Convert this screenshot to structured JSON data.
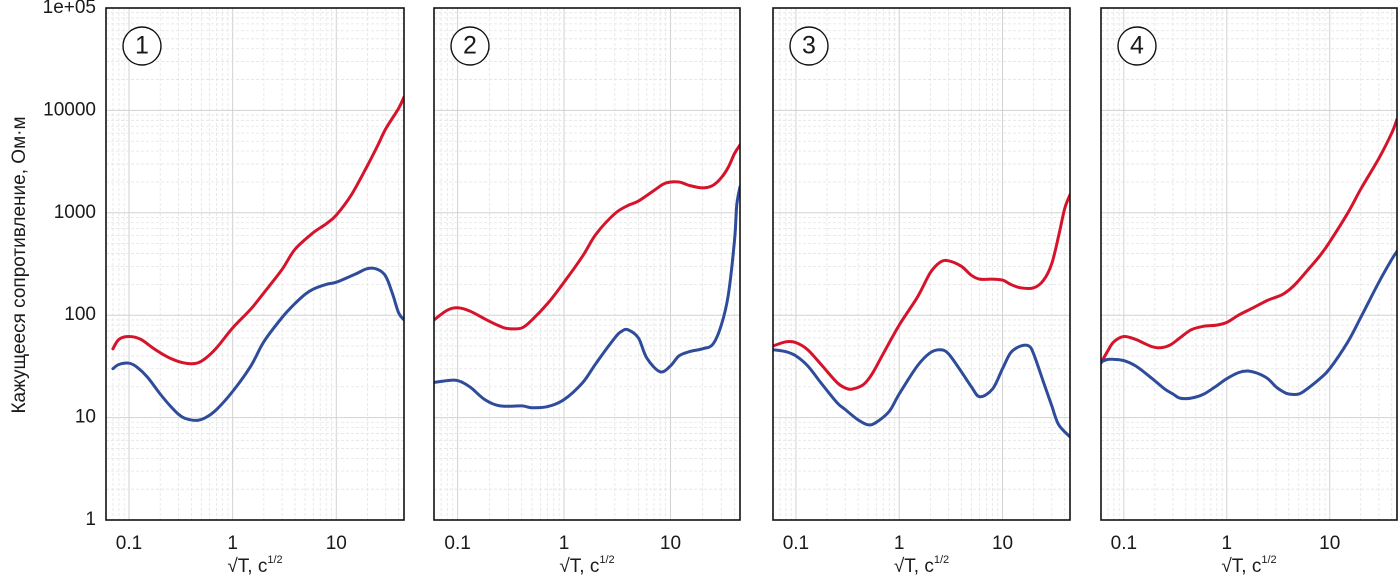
{
  "chart_data": {
    "type": "line",
    "ylabel": "Кажущееся сопротивление, Ом·м",
    "y_scale": "log",
    "x_scale": "log",
    "ylim": [
      1,
      100000
    ],
    "xlim": [
      0.06,
      45
    ],
    "y_ticks": [
      "1",
      "10",
      "100",
      "1000",
      "10000",
      "1e+05"
    ],
    "x_ticks": [
      "0.1",
      "1",
      "10"
    ],
    "x_label_main": "√T, с",
    "x_label_sup": "1/2",
    "grid": true,
    "colors": {
      "red_series": "#d5142b",
      "blue_series": "#2f4c9a"
    },
    "panels": [
      {
        "label": "1",
        "series": [
          {
            "color": "red",
            "points": [
              [
                0.07,
                47
              ],
              [
                0.08,
                58
              ],
              [
                0.1,
                62
              ],
              [
                0.13,
                58
              ],
              [
                0.18,
                46
              ],
              [
                0.25,
                38
              ],
              [
                0.35,
                34
              ],
              [
                0.45,
                34
              ],
              [
                0.55,
                38
              ],
              [
                0.7,
                48
              ],
              [
                1,
                75
              ],
              [
                1.5,
                115
              ],
              [
                2,
                165
              ],
              [
                3,
                280
              ],
              [
                4,
                440
              ],
              [
                6,
                640
              ],
              [
                8,
                780
              ],
              [
                10,
                950
              ],
              [
                14,
                1500
              ],
              [
                20,
                2900
              ],
              [
                25,
                4500
              ],
              [
                30,
                6600
              ],
              [
                40,
                10500
              ],
              [
                45,
                13500
              ]
            ]
          },
          {
            "color": "blue",
            "points": [
              [
                0.07,
                30
              ],
              [
                0.08,
                33
              ],
              [
                0.1,
                34
              ],
              [
                0.12,
                31
              ],
              [
                0.15,
                25
              ],
              [
                0.2,
                17
              ],
              [
                0.25,
                13
              ],
              [
                0.3,
                10.8
              ],
              [
                0.35,
                9.8
              ],
              [
                0.45,
                9.4
              ],
              [
                0.55,
                10
              ],
              [
                0.7,
                12
              ],
              [
                1,
                18
              ],
              [
                1.5,
                32
              ],
              [
                2,
                55
              ],
              [
                3,
                95
              ],
              [
                4,
                130
              ],
              [
                5,
                160
              ],
              [
                6,
                180
              ],
              [
                8,
                200
              ],
              [
                10,
                210
              ],
              [
                15,
                250
              ],
              [
                20,
                285
              ],
              [
                25,
                280
              ],
              [
                30,
                240
              ],
              [
                35,
                160
              ],
              [
                40,
                105
              ],
              [
                45,
                90
              ]
            ]
          }
        ]
      },
      {
        "label": "2",
        "series": [
          {
            "color": "red",
            "points": [
              [
                0.06,
                90
              ],
              [
                0.08,
                112
              ],
              [
                0.1,
                118
              ],
              [
                0.13,
                110
              ],
              [
                0.18,
                92
              ],
              [
                0.25,
                78
              ],
              [
                0.3,
                74
              ],
              [
                0.4,
                75
              ],
              [
                0.5,
                90
              ],
              [
                0.7,
                130
              ],
              [
                1,
                210
              ],
              [
                1.5,
                380
              ],
              [
                2,
                620
              ],
              [
                3,
                980
              ],
              [
                4,
                1180
              ],
              [
                5,
                1300
              ],
              [
                7,
                1650
              ],
              [
                9,
                1950
              ],
              [
                12,
                2000
              ],
              [
                15,
                1850
              ],
              [
                20,
                1750
              ],
              [
                25,
                1850
              ],
              [
                30,
                2200
              ],
              [
                35,
                2800
              ],
              [
                40,
                3800
              ],
              [
                45,
                4600
              ]
            ]
          },
          {
            "color": "blue",
            "points": [
              [
                0.06,
                22
              ],
              [
                0.08,
                23
              ],
              [
                0.1,
                23
              ],
              [
                0.13,
                20
              ],
              [
                0.18,
                15
              ],
              [
                0.25,
                13
              ],
              [
                0.4,
                13
              ],
              [
                0.5,
                12.5
              ],
              [
                0.7,
                12.8
              ],
              [
                1,
                15
              ],
              [
                1.5,
                22
              ],
              [
                2,
                34
              ],
              [
                3,
                60
              ],
              [
                3.5,
                70
              ],
              [
                4,
                72
              ],
              [
                5,
                60
              ],
              [
                6,
                38
              ],
              [
                8,
                28
              ],
              [
                10,
                32
              ],
              [
                12,
                40
              ],
              [
                15,
                44
              ],
              [
                20,
                47
              ],
              [
                25,
                52
              ],
              [
                30,
                80
              ],
              [
                35,
                160
              ],
              [
                40,
                550
              ],
              [
                42,
                1200
              ],
              [
                45,
                1800
              ]
            ]
          }
        ]
      },
      {
        "label": "3",
        "series": [
          {
            "color": "red",
            "points": [
              [
                0.06,
                50
              ],
              [
                0.08,
                55
              ],
              [
                0.1,
                54
              ],
              [
                0.13,
                46
              ],
              [
                0.18,
                32
              ],
              [
                0.25,
                22
              ],
              [
                0.3,
                19.5
              ],
              [
                0.35,
                19
              ],
              [
                0.45,
                21
              ],
              [
                0.55,
                27
              ],
              [
                0.7,
                42
              ],
              [
                1,
                80
              ],
              [
                1.5,
                150
              ],
              [
                2,
                260
              ],
              [
                2.5,
                330
              ],
              [
                3,
                340
              ],
              [
                4,
                300
              ],
              [
                5,
                245
              ],
              [
                6,
                225
              ],
              [
                8,
                225
              ],
              [
                10,
                220
              ],
              [
                12,
                200
              ],
              [
                15,
                185
              ],
              [
                20,
                185
              ],
              [
                25,
                220
              ],
              [
                30,
                320
              ],
              [
                35,
                600
              ],
              [
                40,
                1100
              ],
              [
                45,
                1500
              ]
            ]
          },
          {
            "color": "blue",
            "points": [
              [
                0.06,
                46
              ],
              [
                0.08,
                44
              ],
              [
                0.1,
                40
              ],
              [
                0.13,
                32
              ],
              [
                0.18,
                21
              ],
              [
                0.25,
                14
              ],
              [
                0.3,
                12
              ],
              [
                0.4,
                9.5
              ],
              [
                0.5,
                8.5
              ],
              [
                0.6,
                9
              ],
              [
                0.8,
                11.5
              ],
              [
                1,
                17
              ],
              [
                1.5,
                32
              ],
              [
                2,
                43
              ],
              [
                2.5,
                46
              ],
              [
                3,
                42
              ],
              [
                4,
                28
              ],
              [
                5,
                20
              ],
              [
                6,
                16
              ],
              [
                8,
                19
              ],
              [
                10,
                30
              ],
              [
                12,
                43
              ],
              [
                15,
                50
              ],
              [
                18,
                50
              ],
              [
                20,
                42
              ],
              [
                25,
                22
              ],
              [
                30,
                13
              ],
              [
                35,
                8.5
              ],
              [
                45,
                6.5
              ]
            ]
          }
        ]
      },
      {
        "label": "4",
        "series": [
          {
            "color": "red",
            "points": [
              [
                0.06,
                34
              ],
              [
                0.07,
                45
              ],
              [
                0.08,
                55
              ],
              [
                0.1,
                62
              ],
              [
                0.13,
                58
              ],
              [
                0.18,
                50
              ],
              [
                0.22,
                48
              ],
              [
                0.28,
                51
              ],
              [
                0.35,
                60
              ],
              [
                0.45,
                72
              ],
              [
                0.6,
                78
              ],
              [
                0.8,
                80
              ],
              [
                1,
                85
              ],
              [
                1.3,
                100
              ],
              [
                1.8,
                118
              ],
              [
                2.5,
                140
              ],
              [
                3.5,
                160
              ],
              [
                4.5,
                195
              ],
              [
                6,
                270
              ],
              [
                8,
                380
              ],
              [
                10,
                520
              ],
              [
                15,
                1000
              ],
              [
                20,
                1700
              ],
              [
                30,
                3400
              ],
              [
                40,
                6000
              ],
              [
                45,
                8200
              ]
            ]
          },
          {
            "color": "blue",
            "points": [
              [
                0.06,
                35
              ],
              [
                0.07,
                37
              ],
              [
                0.08,
                37
              ],
              [
                0.1,
                36
              ],
              [
                0.13,
                32
              ],
              [
                0.18,
                25
              ],
              [
                0.25,
                19
              ],
              [
                0.3,
                17
              ],
              [
                0.35,
                15.5
              ],
              [
                0.45,
                15.5
              ],
              [
                0.6,
                17
              ],
              [
                0.8,
                20.5
              ],
              [
                1,
                24
              ],
              [
                1.3,
                27.5
              ],
              [
                1.6,
                28.5
              ],
              [
                2,
                27
              ],
              [
                2.5,
                24
              ],
              [
                3,
                20
              ],
              [
                3.5,
                18
              ],
              [
                4,
                17
              ],
              [
                5,
                17
              ],
              [
                6,
                19
              ],
              [
                8,
                24
              ],
              [
                10,
                30
              ],
              [
                15,
                55
              ],
              [
                20,
                95
              ],
              [
                30,
                210
              ],
              [
                40,
                350
              ],
              [
                45,
                420
              ]
            ]
          }
        ]
      }
    ]
  }
}
